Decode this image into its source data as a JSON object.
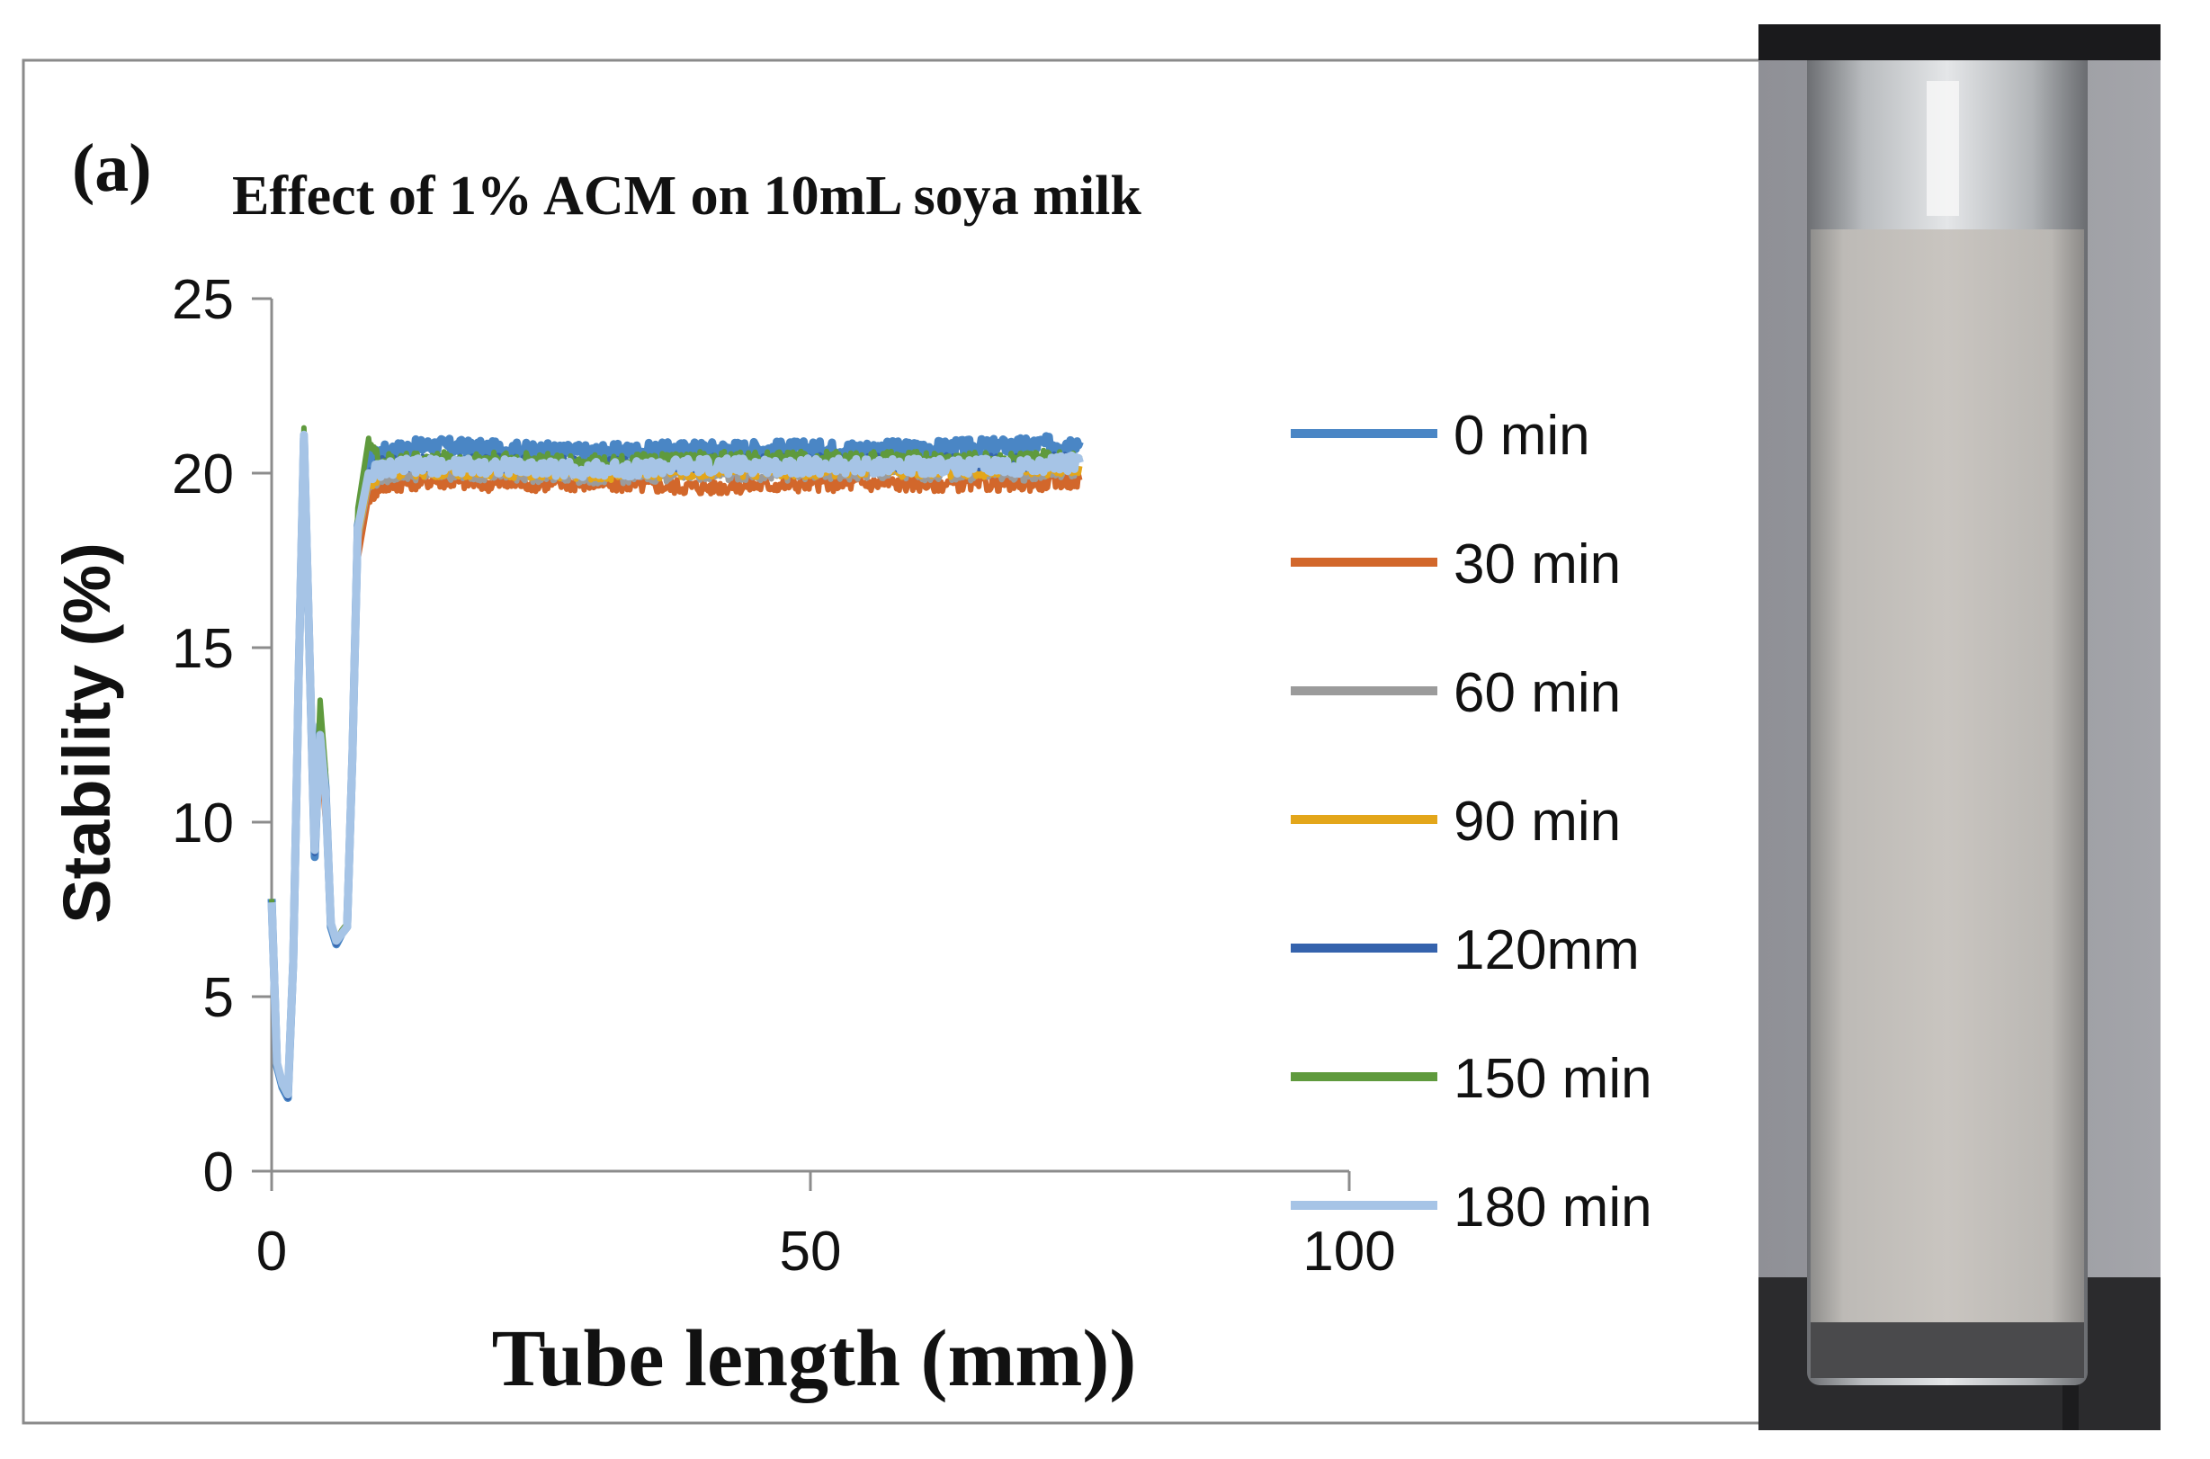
{
  "panel_label": "(a)",
  "chart_data": {
    "type": "line",
    "title": "Effect of 1% ACM on 10mL soya milk",
    "xlabel": "Tube length (mm))",
    "ylabel": "Stability (%)",
    "xlim": [
      0,
      100
    ],
    "ylim": [
      0,
      25
    ],
    "xticks": [
      0,
      50,
      100
    ],
    "yticks": [
      0,
      5,
      10,
      15,
      20,
      25
    ],
    "grid": false,
    "legend_position": "right",
    "series": [
      {
        "name": "0 min",
        "color": "#4a86c5",
        "plateau": 20.7,
        "x": [
          0,
          0.5,
          1,
          1.5,
          2,
          2.5,
          3,
          3.5,
          4,
          4.5,
          5,
          5.5,
          6,
          6.5,
          7,
          7.5,
          8,
          9,
          10,
          12,
          15,
          20,
          30,
          40,
          50,
          60,
          70,
          75
        ],
        "y": [
          7.8,
          3.0,
          2.4,
          2.1,
          6.0,
          14.0,
          21.0,
          15.0,
          9.0,
          12.8,
          11.0,
          7.0,
          6.5,
          6.8,
          7.0,
          12.0,
          18.5,
          20.3,
          20.6,
          20.7,
          20.8,
          20.7,
          20.6,
          20.7,
          20.7,
          20.7,
          20.8,
          20.9
        ]
      },
      {
        "name": "30 min",
        "color": "#d2672b",
        "plateau": 19.8,
        "x": [
          0,
          0.5,
          1,
          1.5,
          2,
          2.5,
          3,
          3.5,
          4,
          4.5,
          5,
          5.5,
          6,
          6.5,
          7,
          7.5,
          8,
          9,
          10,
          12,
          15,
          20,
          30,
          40,
          50,
          60,
          70,
          75
        ],
        "y": [
          7.5,
          3.2,
          2.6,
          2.3,
          5.5,
          13.0,
          20.5,
          14.0,
          9.5,
          12.0,
          10.0,
          7.2,
          6.6,
          6.9,
          7.1,
          11.5,
          17.5,
          19.3,
          19.6,
          19.7,
          19.8,
          19.7,
          19.7,
          19.6,
          19.7,
          19.7,
          19.7,
          19.8
        ]
      },
      {
        "name": "60 min",
        "color": "#9b9b9b",
        "plateau": 20.0,
        "x": [
          0,
          0.5,
          1,
          1.5,
          2,
          2.5,
          3,
          3.5,
          4,
          4.5,
          5,
          5.5,
          6,
          6.5,
          7,
          7.5,
          8,
          9,
          10,
          12,
          15,
          20,
          30,
          40,
          50,
          60,
          70,
          75
        ],
        "y": [
          7.6,
          3.1,
          2.5,
          2.2,
          5.8,
          13.5,
          20.8,
          14.5,
          9.3,
          12.3,
          10.5,
          7.1,
          6.6,
          6.8,
          7.0,
          11.8,
          18.0,
          19.6,
          19.9,
          20.0,
          20.0,
          20.0,
          19.9,
          20.0,
          20.0,
          20.0,
          20.0,
          20.1
        ]
      },
      {
        "name": "90 min",
        "color": "#e3a61a",
        "plateau": 20.1,
        "x": [
          0,
          0.5,
          1,
          1.5,
          2,
          2.5,
          3,
          3.5,
          4,
          4.5,
          5,
          5.5,
          6,
          6.5,
          7,
          7.5,
          8,
          9,
          10,
          12,
          15,
          20,
          30,
          40,
          50,
          60,
          70,
          75
        ],
        "y": [
          7.6,
          3.1,
          2.5,
          2.2,
          5.8,
          13.5,
          20.9,
          14.5,
          9.3,
          12.4,
          10.5,
          7.1,
          6.6,
          6.8,
          7.0,
          11.8,
          18.1,
          19.7,
          20.0,
          20.1,
          20.1,
          20.1,
          20.0,
          20.1,
          20.1,
          20.1,
          20.1,
          20.2
        ]
      },
      {
        "name": "120mm",
        "color": "#3563ad",
        "plateau": 20.3,
        "x": [
          0,
          0.5,
          1,
          1.5,
          2,
          2.5,
          3,
          3.5,
          4,
          4.5,
          5,
          5.5,
          6,
          6.5,
          7,
          7.5,
          8,
          9,
          10,
          12,
          15,
          20,
          30,
          40,
          50,
          60,
          70,
          75
        ],
        "y": [
          7.7,
          3.0,
          2.4,
          2.1,
          5.9,
          13.8,
          21.0,
          14.8,
          9.1,
          12.6,
          10.8,
          7.0,
          6.5,
          6.8,
          7.0,
          11.9,
          18.3,
          19.9,
          20.2,
          20.3,
          20.3,
          20.3,
          20.2,
          20.3,
          20.3,
          20.3,
          20.3,
          20.4
        ]
      },
      {
        "name": "150 min",
        "color": "#5f9a3d",
        "plateau": 20.4,
        "x": [
          0,
          0.5,
          1,
          1.5,
          2,
          2.5,
          3,
          3.5,
          4,
          4.5,
          5,
          5.5,
          6,
          6.5,
          7,
          7.5,
          8,
          9,
          10,
          12,
          15,
          20,
          30,
          40,
          50,
          60,
          70,
          75
        ],
        "y": [
          7.8,
          3.0,
          2.4,
          2.2,
          6.2,
          14.5,
          21.3,
          15.5,
          9.5,
          13.5,
          11.5,
          7.2,
          6.6,
          6.9,
          7.1,
          12.5,
          19.0,
          21.0,
          20.3,
          20.4,
          20.4,
          20.4,
          20.3,
          20.4,
          20.4,
          20.4,
          20.4,
          20.5
        ]
      },
      {
        "name": "180 min",
        "color": "#a6c4e6",
        "plateau": 20.2,
        "x": [
          0,
          0.5,
          1,
          1.5,
          2,
          2.5,
          3,
          3.5,
          4,
          4.5,
          5,
          5.5,
          6,
          6.5,
          7,
          7.5,
          8,
          9,
          10,
          12,
          15,
          20,
          30,
          40,
          50,
          60,
          70,
          75
        ],
        "y": [
          7.7,
          3.1,
          2.5,
          2.2,
          6.0,
          14.0,
          21.1,
          15.0,
          9.2,
          12.5,
          10.8,
          7.1,
          6.6,
          6.8,
          7.0,
          12.0,
          18.4,
          20.0,
          20.1,
          20.2,
          20.2,
          20.2,
          20.1,
          20.2,
          20.2,
          20.2,
          20.2,
          20.3
        ]
      }
    ]
  }
}
